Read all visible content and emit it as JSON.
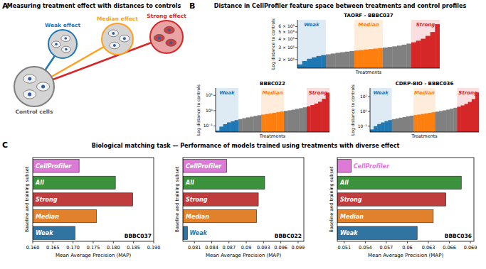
{
  "panels": [
    {
      "label": "A",
      "title": "Measuring treatment effect with distances to controls"
    },
    {
      "label": "B",
      "title": "Distance in CellProfiler feature space between treatments and control profiles"
    },
    {
      "label": "C",
      "title": "Biological matching task — Performance of models trained using treatments with diverse effect"
    }
  ],
  "diagram": {
    "nodes": [
      {
        "label": "Control cells",
        "color": "#7f7f7f"
      },
      {
        "label": "Weak effect",
        "color": "#1f77b4"
      },
      {
        "label": "Median effect",
        "color": "#ff9f1c"
      },
      {
        "label": "Strong effect",
        "color": "#d62728"
      }
    ]
  },
  "chart_data": [
    {
      "type": "bar",
      "title": "TAORF - BBBC037",
      "x_label": "Treatments",
      "y_label": "Log distance to controls",
      "log": "y",
      "tick_labels": "y",
      "color": "#808080",
      "xlim": [
        0.5,
        30.5
      ],
      "ylim": [
        1500,
        7500
      ],
      "yticks": [
        {
          "value": 2000,
          "label": "2 × 10³"
        },
        {
          "value": 3000,
          "label": "3 × 10³"
        },
        {
          "value": 4000,
          "label": "4 × 10³"
        },
        {
          "value": 5000,
          "label": "5 × 10³"
        },
        {
          "value": 6000,
          "label": "6 × 10³"
        }
      ],
      "x": [
        1,
        2,
        3,
        4,
        5,
        6,
        7,
        8,
        9,
        10,
        11,
        12,
        13,
        14,
        15,
        16,
        17,
        18,
        19,
        20,
        21,
        22,
        23,
        24,
        25,
        26,
        27,
        28,
        29,
        30
      ],
      "values": [
        1700,
        1900,
        2050,
        2150,
        2250,
        2320,
        2380,
        2440,
        2500,
        2550,
        2600,
        2650,
        2700,
        2740,
        2790,
        2830,
        2880,
        2930,
        2980,
        3040,
        3100,
        3180,
        3280,
        3400,
        3550,
        3750,
        4000,
        4400,
        5000,
        6500
      ],
      "annotations": [
        {
          "text": "Weak",
          "x": [
            0.5,
            6.5
          ],
          "color": "#1f77b4"
        },
        {
          "text": "Median",
          "x": [
            12.5,
            18.5
          ],
          "color": "#ff7f0e"
        },
        {
          "text": "Strong",
          "x": [
            24.5,
            30.5
          ],
          "color": "#d62728"
        }
      ]
    },
    {
      "type": "bar",
      "title": "BBBC022",
      "x_label": "Treatments",
      "y_label": "Log distance to controls",
      "log": "y",
      "tick_labels": "y",
      "color": "#808080",
      "xlim": [
        0.5,
        30.5
      ],
      "ylim": [
        0.04,
        30
      ],
      "yticks": [
        {
          "value": 0.1,
          "label": "10⁻¹"
        },
        {
          "value": 1,
          "label": "10⁰"
        },
        {
          "value": 10,
          "label": "10¹"
        }
      ],
      "x": [
        1,
        2,
        3,
        4,
        5,
        6,
        7,
        8,
        9,
        10,
        11,
        12,
        13,
        14,
        15,
        16,
        17,
        18,
        19,
        20,
        21,
        22,
        23,
        24,
        25,
        26,
        27,
        28,
        29,
        30
      ],
      "values": [
        0.05,
        0.09,
        0.13,
        0.17,
        0.2,
        0.24,
        0.28,
        0.32,
        0.36,
        0.4,
        0.45,
        0.5,
        0.55,
        0.6,
        0.66,
        0.72,
        0.8,
        0.88,
        0.96,
        1.05,
        1.15,
        1.3,
        1.45,
        1.65,
        1.9,
        2.3,
        2.9,
        3.8,
        6,
        15
      ],
      "annotations": [
        {
          "text": "Weak",
          "x": [
            0.5,
            6.5
          ],
          "color": "#1f77b4"
        },
        {
          "text": "Median",
          "x": [
            12.5,
            18.5
          ],
          "color": "#ff7f0e"
        },
        {
          "text": "Strong",
          "x": [
            24.5,
            30.5
          ],
          "color": "#d62728"
        }
      ]
    },
    {
      "type": "bar",
      "title": "CDRP-BIO - BBBC036",
      "x_label": "Treatments",
      "y_label": "Log distance to controls",
      "log": "y",
      "tick_labels": "y",
      "color": "#808080",
      "xlim": [
        0.5,
        30.5
      ],
      "ylim": [
        0.04,
        40
      ],
      "yticks": [
        {
          "value": 0.1,
          "label": "10⁻¹"
        },
        {
          "value": 1,
          "label": "10⁰"
        },
        {
          "value": 10,
          "label": "10¹"
        }
      ],
      "x": [
        1,
        2,
        3,
        4,
        5,
        6,
        7,
        8,
        9,
        10,
        11,
        12,
        13,
        14,
        15,
        16,
        17,
        18,
        19,
        20,
        21,
        22,
        23,
        24,
        25,
        26,
        27,
        28,
        29,
        30
      ],
      "values": [
        0.06,
        0.1,
        0.14,
        0.18,
        0.22,
        0.26,
        0.3,
        0.34,
        0.38,
        0.42,
        0.47,
        0.52,
        0.57,
        0.62,
        0.68,
        0.74,
        0.81,
        0.89,
        0.98,
        1.08,
        1.2,
        1.35,
        1.55,
        1.8,
        2.1,
        2.6,
        3.3,
        4.5,
        7,
        20
      ],
      "annotations": [
        {
          "text": "Weak",
          "x": [
            0.5,
            6.5
          ],
          "color": "#1f77b4"
        },
        {
          "text": "Median",
          "x": [
            12.5,
            18.5
          ],
          "color": "#ff7f0e"
        },
        {
          "text": "Strong",
          "x": [
            24.5,
            30.5
          ],
          "color": "#d62728"
        }
      ]
    },
    {
      "type": "bar",
      "orientation": "horizontal",
      "title": "BBBC037",
      "x_label": "Mean Average Precision (MAP)",
      "y_label": "Baseline and training subset",
      "tick_labels": "x",
      "categories": [
        "CellProfiler",
        "All",
        "Strong",
        "Median",
        "Weak"
      ],
      "values": [
        0.1715,
        0.1805,
        0.1848,
        0.1758,
        0.1705
      ],
      "colors": [
        "#dd79d6",
        "#3a923a",
        "#c03d3e",
        "#e1812c",
        "#3274a1"
      ],
      "xlim": [
        0.16,
        0.19
      ],
      "xticks": [
        {
          "value": 0.16,
          "label": "0.160"
        },
        0.165,
        {
          "value": 0.17,
          "label": "0.170"
        },
        0.175,
        {
          "value": 0.18,
          "label": "0.180"
        },
        0.185,
        {
          "value": 0.19,
          "label": "0.190"
        }
      ]
    },
    {
      "type": "bar",
      "orientation": "horizontal",
      "title": "BBBC022",
      "x_label": "Mean Average Precision (MAP)",
      "y_label": "Baseline and training subset",
      "tick_labels": "x",
      "categories": [
        "CellProfiler",
        "All",
        "Strong",
        "Median",
        "Weak"
      ],
      "values": [
        0.0866,
        0.0932,
        0.0921,
        0.0918,
        0.0798
      ],
      "colors": [
        "#dd79d6",
        "#3a923a",
        "#c03d3e",
        "#e1812c",
        "#3274a1"
      ],
      "xlim": [
        0.079,
        0.1
      ],
      "xticks": [
        0.081,
        0.084,
        0.087,
        0.09,
        0.093,
        0.096,
        0.099
      ]
    },
    {
      "type": "bar",
      "orientation": "horizontal",
      "title": "BBBC036",
      "x_label": "Mean Average Precision (MAP)",
      "y_label": "Baseline and training subset",
      "tick_labels": "x",
      "categories": [
        "CellProfiler",
        "All",
        "Strong",
        "Median",
        "Weak"
      ],
      "values": [
        0.052,
        0.0677,
        0.0655,
        0.0637,
        0.0614
      ],
      "colors": [
        "#dd79d6",
        "#3a923a",
        "#c03d3e",
        "#e1812c",
        "#3274a1"
      ],
      "xlim": [
        0.05,
        0.0695
      ],
      "xticks": [
        0.051,
        0.054,
        0.057,
        0.06,
        0.063,
        0.066,
        0.069
      ]
    }
  ]
}
